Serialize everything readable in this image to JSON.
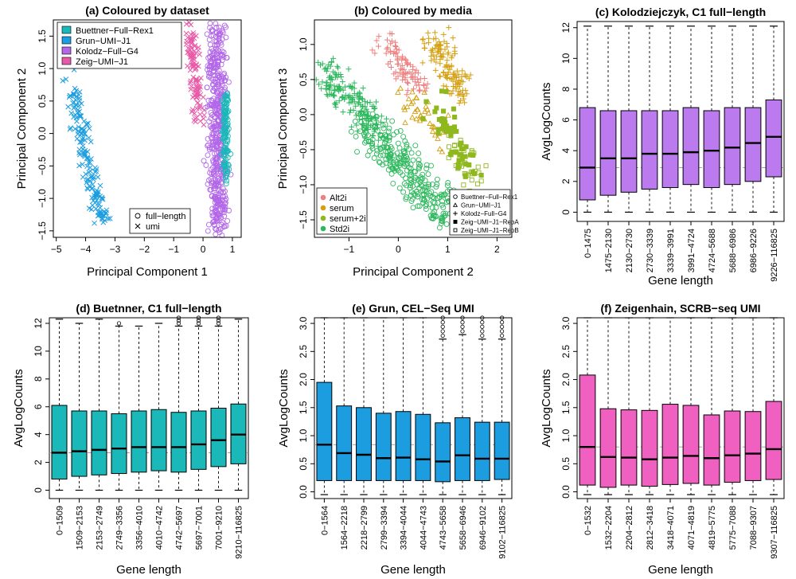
{
  "figure": {
    "panels": [
      {
        "id": "a",
        "title": "(a) Coloured by dataset",
        "xlabel": "Principal Component 1",
        "ylabel": "Principal Component 2"
      },
      {
        "id": "b",
        "title": "(b) Coloured by media",
        "xlabel": "Principal Component 2",
        "ylabel": "Principal Component 3"
      },
      {
        "id": "c",
        "title": "(c) Kolodziejczyk, C1 full−length",
        "xlabel": "Gene length",
        "ylabel": "AvgLogCounts"
      },
      {
        "id": "d",
        "title": "(d) Buetnner, C1 full−length",
        "xlabel": "Gene length",
        "ylabel": "AvgLogCounts"
      },
      {
        "id": "e",
        "title": "(e) Grun, CEL−Seq UMI",
        "xlabel": "Gene length",
        "ylabel": "AvgLogCounts"
      },
      {
        "id": "f",
        "title": "(f) Zeigenhain, SCRB−seq UMI",
        "xlabel": "Gene length",
        "ylabel": "AvgLogCounts"
      }
    ]
  },
  "chart_data": [
    {
      "type": "scatter",
      "title": "(a) Coloured by dataset",
      "xlabel": "Principal Component 1",
      "ylabel": "Principal Component 2",
      "xlim": [
        -5.1,
        1.3
      ],
      "ylim": [
        -1.6,
        1.75
      ],
      "xticks": [
        -5,
        -4,
        -3,
        -2,
        -1,
        0,
        1
      ],
      "yticks": [
        -1.5,
        -1.0,
        -0.5,
        0.0,
        0.5,
        1.0,
        1.5
      ],
      "legend_color": {
        "position": "top-left",
        "entries": [
          {
            "name": "Buettner−Full−Rex1",
            "color": "#1ab8b8"
          },
          {
            "name": "Grun−UMI−J1",
            "color": "#1b9de0"
          },
          {
            "name": "Kolodz−Full−G4",
            "color": "#b266e8"
          },
          {
            "name": "Zeig−UMI−J1",
            "color": "#e85aa8"
          }
        ]
      },
      "legend_shape": {
        "position": "bottom-right",
        "entries": [
          {
            "name": "full−length",
            "marker": "circle"
          },
          {
            "name": "umi",
            "marker": "cross"
          }
        ]
      },
      "clusters": [
        {
          "series": "Grun−UMI−J1",
          "marker": "cross",
          "n": 160,
          "from": [
            -4.5,
            0.7
          ],
          "to": [
            -3.4,
            -1.4
          ],
          "spread": 0.16
        },
        {
          "series": "Zeig−UMI−J1",
          "marker": "cross",
          "n": 110,
          "from": [
            -0.45,
            1.55
          ],
          "to": [
            -0.1,
            0.2
          ],
          "spread": 0.14
        },
        {
          "series": "Kolodz−Full−G4",
          "marker": "circle",
          "n": 480,
          "from": [
            0.45,
            1.6
          ],
          "to": [
            0.55,
            -1.5
          ],
          "spread": 0.2
        },
        {
          "series": "Buettner−Full−Rex1",
          "marker": "circle",
          "n": 130,
          "from": [
            0.75,
            0.6
          ],
          "to": [
            0.78,
            -0.7
          ],
          "spread": 0.07
        }
      ]
    },
    {
      "type": "scatter",
      "title": "(b) Coloured by media",
      "xlabel": "Principal Component 2",
      "ylabel": "Principal Component 3",
      "xlim": [
        -1.7,
        2.3
      ],
      "ylim": [
        -1.75,
        1.35
      ],
      "xticks": [
        -1,
        0,
        1,
        2
      ],
      "yticks": [
        -1.5,
        -1.0,
        -0.5,
        0.0,
        0.5,
        1.0
      ],
      "legend_color": {
        "position": "bottom-left",
        "entries": [
          {
            "name": "Alt2i",
            "color": "#f07f7f"
          },
          {
            "name": "serum",
            "color": "#d4a012"
          },
          {
            "name": "serum+2i",
            "color": "#8fb81e"
          },
          {
            "name": "Std2i",
            "color": "#2db85c"
          }
        ]
      },
      "legend_shape": {
        "position": "bottom-right",
        "entries": [
          {
            "name": "Buettner−Full−Rex1",
            "marker": "circle"
          },
          {
            "name": "Grun−UMI−J1",
            "marker": "triangle"
          },
          {
            "name": "Kolodz−Full−G4",
            "marker": "plus"
          },
          {
            "name": "Zeig−UMI−J1−RepA",
            "marker": "square-filled"
          },
          {
            "name": "Zeig−UMI−J1−RepB",
            "marker": "square-open"
          }
        ]
      },
      "clusters": [
        {
          "series": "Std2i",
          "marker": "plus",
          "n": 170,
          "from": [
            -1.5,
            0.6
          ],
          "to": [
            -0.4,
            -0.2
          ],
          "spread": 0.18
        },
        {
          "series": "Std2i",
          "marker": "circle",
          "n": 300,
          "from": [
            -0.7,
            -0.1
          ],
          "to": [
            1.1,
            -1.5
          ],
          "spread": 0.22
        },
        {
          "series": "Alt2i",
          "marker": "plus",
          "n": 90,
          "from": [
            -0.3,
            1.05
          ],
          "to": [
            0.4,
            0.4
          ],
          "spread": 0.14
        },
        {
          "series": "serum",
          "marker": "plus",
          "n": 130,
          "from": [
            0.7,
            1.05
          ],
          "to": [
            1.3,
            0.3
          ],
          "spread": 0.16
        },
        {
          "series": "serum",
          "marker": "triangle",
          "n": 40,
          "from": [
            0.2,
            0.3
          ],
          "to": [
            0.9,
            -0.4
          ],
          "spread": 0.18
        },
        {
          "series": "serum+2i",
          "marker": "square-filled",
          "n": 55,
          "from": [
            0.7,
            0.2
          ],
          "to": [
            1.5,
            -0.8
          ],
          "spread": 0.18
        },
        {
          "series": "serum+2i",
          "marker": "square-open",
          "n": 35,
          "from": [
            1.0,
            -0.2
          ],
          "to": [
            1.6,
            -1.0
          ],
          "spread": 0.15
        }
      ]
    },
    {
      "type": "box",
      "title": "(c) Kolodziejczyk, C1 full−length",
      "xlabel": "Gene length",
      "ylabel": "AvgLogCounts",
      "ylim": [
        -0.6,
        12.4
      ],
      "yticks": [
        0,
        2,
        4,
        6,
        8,
        10,
        12
      ],
      "color": "#bb7aee",
      "reference_line": 2.9,
      "categories": [
        "0−1475",
        "1475−2130",
        "2130−2730",
        "2730−3339",
        "3339−3991",
        "3991−4724",
        "4724−5688",
        "5688−6986",
        "6986−9226",
        "9226−116825"
      ],
      "boxes": [
        {
          "low": 0.0,
          "q1": 0.8,
          "median": 2.9,
          "q3": 6.8,
          "high": 12.1
        },
        {
          "low": 0.0,
          "q1": 1.1,
          "median": 3.5,
          "q3": 6.6,
          "high": 12.1
        },
        {
          "low": 0.0,
          "q1": 1.3,
          "median": 3.5,
          "q3": 6.6,
          "high": 12.1
        },
        {
          "low": 0.0,
          "q1": 1.5,
          "median": 3.8,
          "q3": 6.6,
          "high": 12.1
        },
        {
          "low": 0.0,
          "q1": 1.6,
          "median": 3.8,
          "q3": 6.6,
          "high": 12.1
        },
        {
          "low": 0.0,
          "q1": 1.8,
          "median": 3.9,
          "q3": 6.8,
          "high": 12.1
        },
        {
          "low": 0.0,
          "q1": 1.6,
          "median": 4.0,
          "q3": 6.6,
          "high": 12.1
        },
        {
          "low": 0.0,
          "q1": 1.8,
          "median": 4.2,
          "q3": 6.8,
          "high": 12.1
        },
        {
          "low": 0.0,
          "q1": 2.0,
          "median": 4.5,
          "q3": 6.8,
          "high": 12.1
        },
        {
          "low": 0.0,
          "q1": 2.3,
          "median": 4.9,
          "q3": 7.3,
          "high": 12.1
        }
      ]
    },
    {
      "type": "box",
      "title": "(d) Buetnner, C1 full−length",
      "xlabel": "Gene length",
      "ylabel": "AvgLogCounts",
      "ylim": [
        -0.6,
        12.4
      ],
      "yticks": [
        0,
        2,
        4,
        6,
        8,
        10,
        12
      ],
      "color": "#1ab8b8",
      "reference_line": 2.7,
      "categories": [
        "0−1509",
        "1509−2153",
        "2153−2749",
        "2749−3356",
        "3356−4010",
        "4010−4742",
        "4742−5697",
        "5697−7001",
        "7001−9210",
        "9210−116825"
      ],
      "boxes": [
        {
          "low": 0.0,
          "q1": 0.8,
          "median": 2.7,
          "q3": 6.1,
          "high": 12.3,
          "outliers": []
        },
        {
          "low": 0.0,
          "q1": 1.0,
          "median": 2.8,
          "q3": 5.7,
          "high": 12.0,
          "outliers": []
        },
        {
          "low": 0.0,
          "q1": 1.1,
          "median": 2.9,
          "q3": 5.7,
          "high": 12.3,
          "outliers": []
        },
        {
          "low": 0.0,
          "q1": 1.2,
          "median": 3.0,
          "q3": 5.5,
          "high": 11.8,
          "outliers": [
            12.0
          ]
        },
        {
          "low": 0.0,
          "q1": 1.3,
          "median": 3.1,
          "q3": 5.7,
          "high": 11.8,
          "outliers": []
        },
        {
          "low": 0.0,
          "q1": 1.4,
          "median": 3.1,
          "q3": 5.8,
          "high": 12.0,
          "outliers": []
        },
        {
          "low": 0.0,
          "q1": 1.3,
          "median": 3.1,
          "q3": 5.6,
          "high": 11.8,
          "outliers": [
            12.0,
            12.2,
            12.4
          ]
        },
        {
          "low": 0.0,
          "q1": 1.5,
          "median": 3.3,
          "q3": 5.7,
          "high": 11.8,
          "outliers": [
            12.0,
            12.2,
            12.4
          ]
        },
        {
          "low": 0.0,
          "q1": 1.7,
          "median": 3.6,
          "q3": 5.9,
          "high": 11.8,
          "outliers": [
            12.0,
            12.2,
            12.4
          ]
        },
        {
          "low": 0.0,
          "q1": 1.9,
          "median": 4.0,
          "q3": 6.2,
          "high": 12.3,
          "outliers": []
        }
      ]
    },
    {
      "type": "box",
      "title": "(e) Grun, CEL−Seq UMI",
      "xlabel": "Gene length",
      "ylabel": "AvgLogCounts",
      "ylim": [
        -0.12,
        3.1
      ],
      "yticks": [
        0.0,
        0.5,
        1.0,
        1.5,
        2.0,
        2.5,
        3.0
      ],
      "color": "#1b9de0",
      "reference_line": 0.84,
      "categories": [
        "0−1564",
        "1564−2218",
        "2218−2799",
        "2799−3394",
        "3394−4044",
        "4044−4743",
        "4743−5658",
        "5658−6946",
        "6946−9102",
        "9102−116825"
      ],
      "boxes": [
        {
          "low": -0.05,
          "q1": 0.2,
          "median": 0.84,
          "q3": 1.95,
          "high": 3.1,
          "outliers": []
        },
        {
          "low": -0.05,
          "q1": 0.2,
          "median": 0.69,
          "q3": 1.53,
          "high": 3.1,
          "outliers": []
        },
        {
          "low": -0.05,
          "q1": 0.2,
          "median": 0.66,
          "q3": 1.5,
          "high": 3.1,
          "outliers": []
        },
        {
          "low": -0.05,
          "q1": 0.2,
          "median": 0.6,
          "q3": 1.4,
          "high": 3.1,
          "outliers": []
        },
        {
          "low": -0.05,
          "q1": 0.2,
          "median": 0.61,
          "q3": 1.43,
          "high": 3.1,
          "outliers": []
        },
        {
          "low": -0.05,
          "q1": 0.2,
          "median": 0.58,
          "q3": 1.38,
          "high": 3.1,
          "outliers": []
        },
        {
          "low": -0.05,
          "q1": 0.18,
          "median": 0.54,
          "q3": 1.23,
          "high": 2.72,
          "outliers": [
            2.78,
            2.86,
            2.94,
            3.02,
            3.1
          ]
        },
        {
          "low": -0.05,
          "q1": 0.2,
          "median": 0.65,
          "q3": 1.32,
          "high": 2.8,
          "outliers": [
            2.86,
            2.94,
            3.02,
            3.1
          ]
        },
        {
          "low": -0.05,
          "q1": 0.2,
          "median": 0.59,
          "q3": 1.24,
          "high": 2.72,
          "outliers": [
            2.78,
            2.86,
            2.94,
            3.02,
            3.1
          ]
        },
        {
          "low": -0.05,
          "q1": 0.22,
          "median": 0.59,
          "q3": 1.24,
          "high": 2.72,
          "outliers": [
            2.78,
            2.86,
            2.94,
            3.02,
            3.1
          ]
        }
      ]
    },
    {
      "type": "box",
      "title": "(f) Zeigenhain, SCRB−seq UMI",
      "xlabel": "Gene length",
      "ylabel": "AvgLogCounts",
      "ylim": [
        -0.12,
        3.1
      ],
      "yticks": [
        0.0,
        0.5,
        1.0,
        1.5,
        2.0,
        2.5,
        3.0
      ],
      "color": "#f060c0",
      "reference_line": 0.8,
      "categories": [
        "0−1532",
        "1532−2204",
        "2204−2812",
        "2812−3418",
        "3418−4071",
        "4071−4819",
        "4819−5775",
        "5775−7088",
        "7088−9307",
        "9307−116825"
      ],
      "boxes": [
        {
          "low": -0.05,
          "q1": 0.12,
          "median": 0.8,
          "q3": 2.08,
          "high": 3.1
        },
        {
          "low": -0.05,
          "q1": 0.08,
          "median": 0.62,
          "q3": 1.48,
          "high": 3.1
        },
        {
          "low": -0.05,
          "q1": 0.12,
          "median": 0.61,
          "q3": 1.46,
          "high": 3.1
        },
        {
          "low": -0.05,
          "q1": 0.1,
          "median": 0.58,
          "q3": 1.45,
          "high": 3.1
        },
        {
          "low": -0.05,
          "q1": 0.13,
          "median": 0.61,
          "q3": 1.56,
          "high": 3.1
        },
        {
          "low": -0.05,
          "q1": 0.15,
          "median": 0.64,
          "q3": 1.54,
          "high": 3.1
        },
        {
          "low": -0.05,
          "q1": 0.12,
          "median": 0.6,
          "q3": 1.37,
          "high": 3.1
        },
        {
          "low": -0.05,
          "q1": 0.17,
          "median": 0.65,
          "q3": 1.44,
          "high": 3.1
        },
        {
          "low": -0.05,
          "q1": 0.2,
          "median": 0.68,
          "q3": 1.43,
          "high": 3.1
        },
        {
          "low": -0.05,
          "q1": 0.22,
          "median": 0.76,
          "q3": 1.61,
          "high": 3.1
        }
      ]
    }
  ]
}
